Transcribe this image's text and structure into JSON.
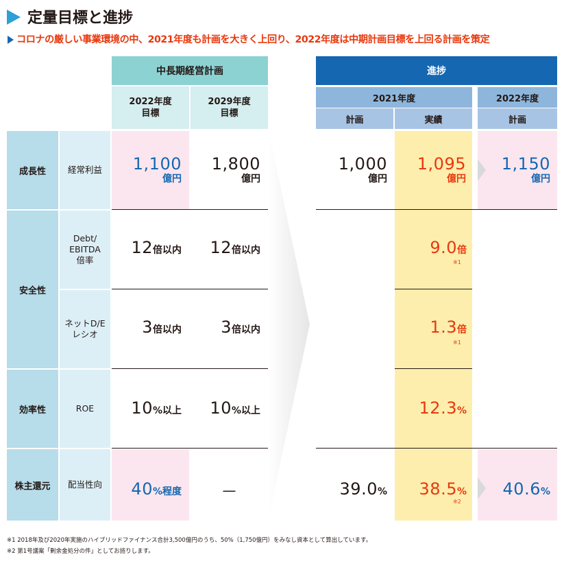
{
  "title": "定量目標と進捗",
  "subtitle": "コロナの厳しい事業環境の中、2021年度も計画を大きく上回り、2022年度は中期計画目標を上回る計画を策定",
  "headers": {
    "plan_group": "中長期経営計画",
    "plan_2022": "2022年度",
    "plan_2029": "2029年度",
    "target": "目標",
    "progress_group": "進捗",
    "fy2021": "2021年度",
    "fy2022": "2022年度",
    "keikaku": "計画",
    "jisseki": "実績"
  },
  "categories": {
    "growth": "成長性",
    "safety": "安全性",
    "efficiency": "効率性",
    "return": "株主還元"
  },
  "items": {
    "ordinary_profit": "経常利益",
    "debt_ebitda_1": "Debt/",
    "debt_ebitda_2": "EBITDA",
    "debt_ebitda_3": "倍率",
    "net_de_1": "ネットD/E",
    "net_de_2": "レシオ",
    "roe": "ROE",
    "payout": "配当性向"
  },
  "values": {
    "profit": {
      "t2022": "1,100",
      "t2029": "1,800",
      "p2021": "1,000",
      "a2021": "1,095",
      "p2022": "1,150",
      "unit": "億円"
    },
    "debt_ebitda": {
      "t2022": "12",
      "t2029": "12",
      "unit": "倍以内",
      "a2021": "9.0",
      "a_unit": "倍",
      "note": "※1"
    },
    "net_de": {
      "t2022": "3",
      "t2029": "3",
      "unit": "倍以内",
      "a2021": "1.3",
      "a_unit": "倍",
      "note": "※1"
    },
    "roe": {
      "t2022": "10",
      "t2029": "10",
      "unit": "%以上",
      "a2021": "12.3",
      "a_unit": "%"
    },
    "payout": {
      "t2022": "40",
      "t2022_unit": "%程度",
      "t2029": "—",
      "p2021": "39.0",
      "a2021": "38.5",
      "p2022": "40.6",
      "unit": "%",
      "note": "※2"
    }
  },
  "footnotes": [
    "※1 2018年及び2020年実施のハイブリッドファイナンス合計3,500億円のうち、50%（1,750億円）をみなし資本として算出しています。",
    "※2 第1号議案「剰余金処分の件」としてお諮りします。"
  ],
  "colors": {
    "blue": "#1567b1",
    "red": "#e8380d",
    "teal": "#8cd2d2",
    "pink": "#fbe6ef",
    "yellow": "#fdeeae"
  }
}
